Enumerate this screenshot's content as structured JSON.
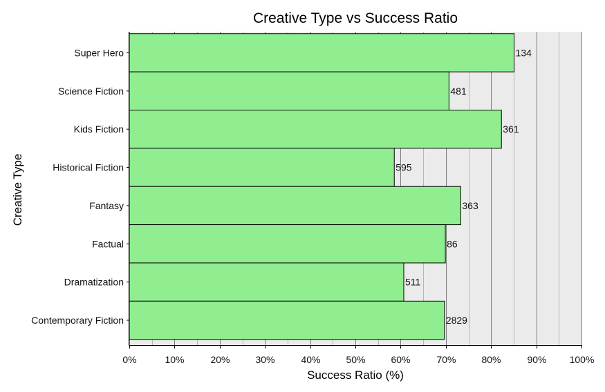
{
  "chart_data": {
    "type": "bar",
    "orientation": "horizontal",
    "title": "Creative Type vs Success Ratio",
    "xlabel": "Success Ratio (%)",
    "ylabel": "Creative Type",
    "xlim": [
      0,
      100
    ],
    "x_ticks": [
      "0%",
      "10%",
      "20%",
      "30%",
      "40%",
      "50%",
      "60%",
      "70%",
      "80%",
      "90%",
      "100%"
    ],
    "grid": true,
    "categories": [
      "Super Hero",
      "Science Fiction",
      "Kids Fiction",
      "Historical Fiction",
      "Fantasy",
      "Factual",
      "Dramatization",
      "Contemporary Fiction"
    ],
    "values": [
      85.1,
      70.7,
      82.3,
      58.6,
      73.3,
      69.9,
      60.7,
      69.7
    ],
    "data_labels": [
      "134",
      "481",
      "361",
      "595",
      "363",
      "86",
      "511",
      "2829"
    ],
    "bar_color": "#90ee90",
    "bar_edge_color": "#000000",
    "panel_background": "#ebebeb"
  }
}
